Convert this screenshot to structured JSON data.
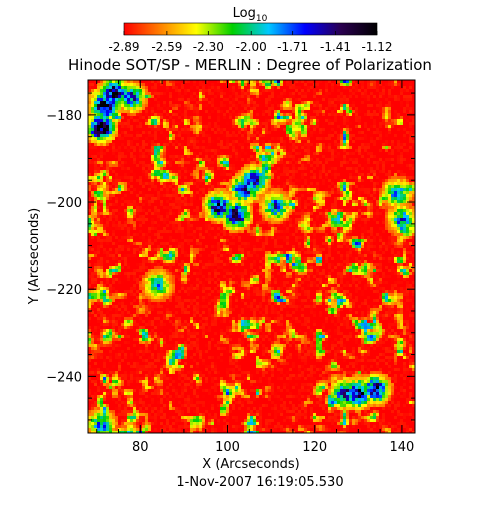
{
  "chart_data": {
    "type": "heatmap",
    "title": "Hinode SOT/SP - MERLIN : Degree of Polarization",
    "xlabel": "X (Arcseconds)",
    "ylabel": "Y (Arcseconds)",
    "xlim": [
      68,
      143
    ],
    "ylim": [
      -253,
      -172
    ],
    "x_ticks": [
      80,
      100,
      120,
      140
    ],
    "y_ticks": [
      -180,
      -200,
      -220,
      -240
    ],
    "colorbar": {
      "label_base": "Log",
      "label_sub": "10",
      "ticks": [
        "-2.89",
        "-2.59",
        "-2.30",
        "-2.00",
        "-1.71",
        "-1.41",
        "-1.12"
      ],
      "range": [
        -2.89,
        -1.12
      ],
      "colormap": [
        "#ff0000",
        "#ff8000",
        "#ffff00",
        "#00d000",
        "#00c8ff",
        "#0000ff",
        "#2a004f",
        "#000000"
      ]
    },
    "footer": "1-Nov-2007 16:19:05.530",
    "grid": false,
    "pattern": "dense red background (about -2.89) with scattered yellow/green speckles; blue/dark clusters near the upper-left corner, center and lower-right",
    "hotspots": [
      {
        "x": 72,
        "y": -178,
        "v": -1.2
      },
      {
        "x": 71,
        "y": -183,
        "v": -1.15
      },
      {
        "x": 74,
        "y": -175,
        "v": -1.3
      },
      {
        "x": 78,
        "y": -176,
        "v": -1.6
      },
      {
        "x": 98,
        "y": -201,
        "v": -1.4
      },
      {
        "x": 102,
        "y": -203,
        "v": -1.35
      },
      {
        "x": 104,
        "y": -197,
        "v": -1.5
      },
      {
        "x": 106,
        "y": -195,
        "v": -1.55
      },
      {
        "x": 111,
        "y": -201,
        "v": -1.7
      },
      {
        "x": 130,
        "y": -244,
        "v": -1.35
      },
      {
        "x": 134,
        "y": -243,
        "v": -1.4
      },
      {
        "x": 127,
        "y": -244,
        "v": -1.5
      },
      {
        "x": 139,
        "y": -198,
        "v": -1.8
      },
      {
        "x": 140,
        "y": -204,
        "v": -1.8
      },
      {
        "x": 84,
        "y": -219,
        "v": -1.9
      },
      {
        "x": 71,
        "y": -251,
        "v": -1.85
      }
    ]
  }
}
